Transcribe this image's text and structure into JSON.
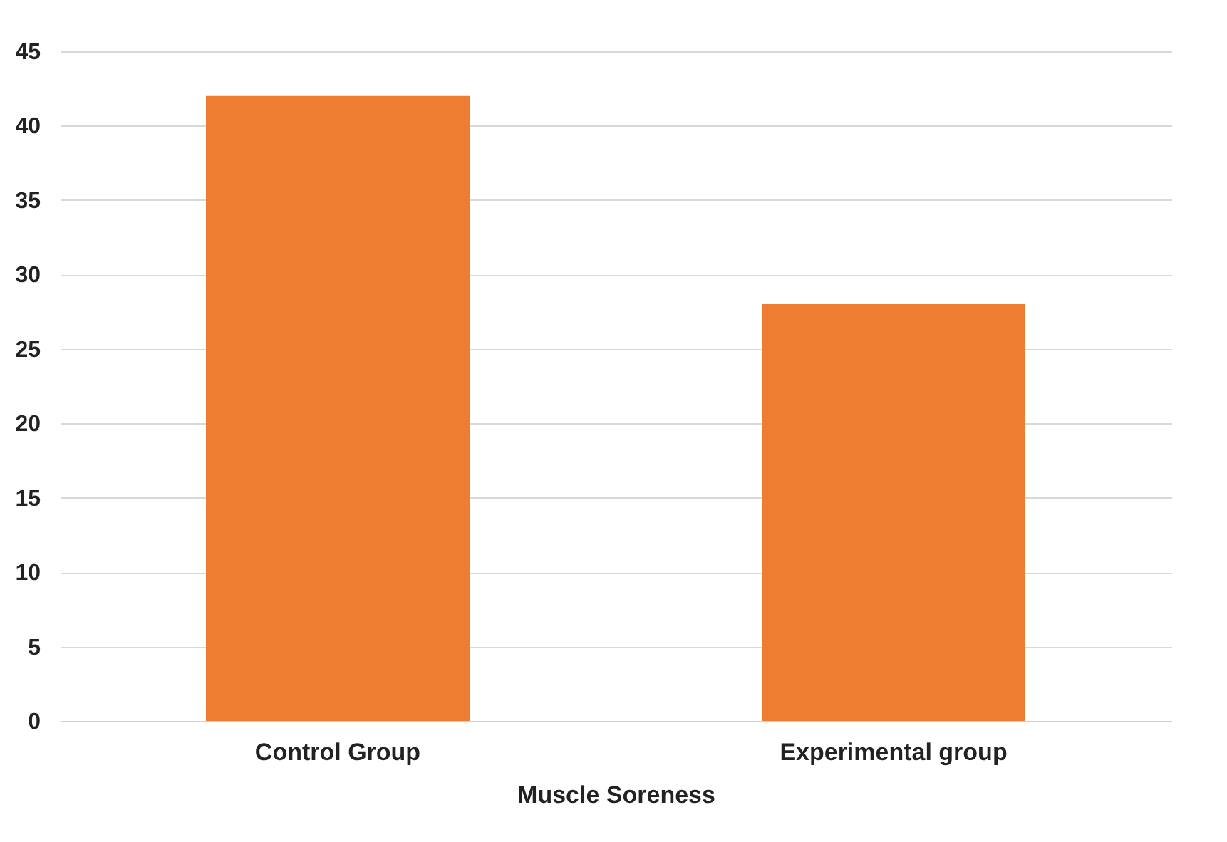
{
  "chart_data": {
    "type": "bar",
    "xlabel": "Muscle Soreness",
    "categories": [
      "Control Group",
      "Experimental group"
    ],
    "series": [
      {
        "color": "#ed7d31",
        "values": [
          42,
          28
        ]
      }
    ],
    "ylim": [
      0,
      45
    ],
    "yticks": [
      0,
      5,
      10,
      15,
      20,
      25,
      30,
      35,
      40,
      45
    ],
    "grid": "y"
  }
}
